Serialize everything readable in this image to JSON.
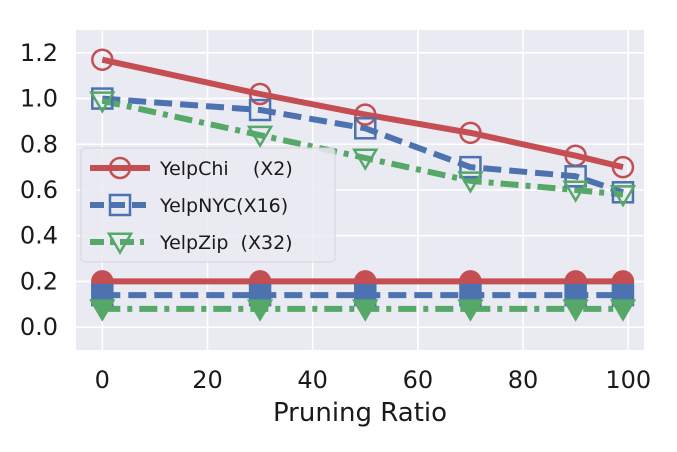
{
  "chart_data": {
    "type": "line",
    "title": "",
    "xlabel": "Pruning Ratio",
    "ylabel": "",
    "xlim": [
      -5,
      103
    ],
    "ylim": [
      -0.1,
      1.3
    ],
    "xticks": [
      0,
      20,
      40,
      60,
      80,
      100
    ],
    "yticks": [
      0.0,
      0.2,
      0.4,
      0.6,
      0.8,
      1.0,
      1.2
    ],
    "xtick_labels": [
      "0",
      "20",
      "40",
      "60",
      "80",
      "100"
    ],
    "ytick_labels": [
      "0.0",
      "0.2",
      "0.4",
      "0.6",
      "0.8",
      "1.0",
      "1.2"
    ],
    "grid": true,
    "legend_position": "center-left",
    "x": [
      0,
      30,
      50,
      70,
      90,
      99
    ],
    "series": [
      {
        "name": "YelpChi    (X2)",
        "color": "#c44e52",
        "marker": "circle-open",
        "linestyle": "solid",
        "values": [
          1.17,
          1.02,
          0.93,
          0.85,
          0.75,
          0.7
        ]
      },
      {
        "name": "YelpNYC(X16)",
        "color": "#4c72b0",
        "marker": "square-open",
        "linestyle": "dashed",
        "values": [
          1.0,
          0.95,
          0.87,
          0.7,
          0.66,
          0.59
        ]
      },
      {
        "name": "YelpZip  (X32)",
        "color": "#55a868",
        "marker": "triangle-down-open",
        "linestyle": "dashdot",
        "values": [
          0.99,
          0.84,
          0.74,
          0.64,
          0.6,
          0.58
        ]
      },
      {
        "name": "",
        "color": "#c44e52",
        "marker": "circle-filled",
        "linestyle": "solid",
        "values": [
          0.2,
          0.2,
          0.2,
          0.2,
          0.2,
          0.2
        ]
      },
      {
        "name": "",
        "color": "#4c72b0",
        "marker": "square-filled",
        "linestyle": "dashed",
        "values": [
          0.14,
          0.14,
          0.14,
          0.14,
          0.14,
          0.14
        ]
      },
      {
        "name": "",
        "color": "#55a868",
        "marker": "triangle-down-filled",
        "linestyle": "dashdot",
        "values": [
          0.08,
          0.08,
          0.08,
          0.08,
          0.08,
          0.08
        ]
      }
    ],
    "colors": {
      "background": "#eaeaf2",
      "grid": "#ffffff"
    }
  }
}
